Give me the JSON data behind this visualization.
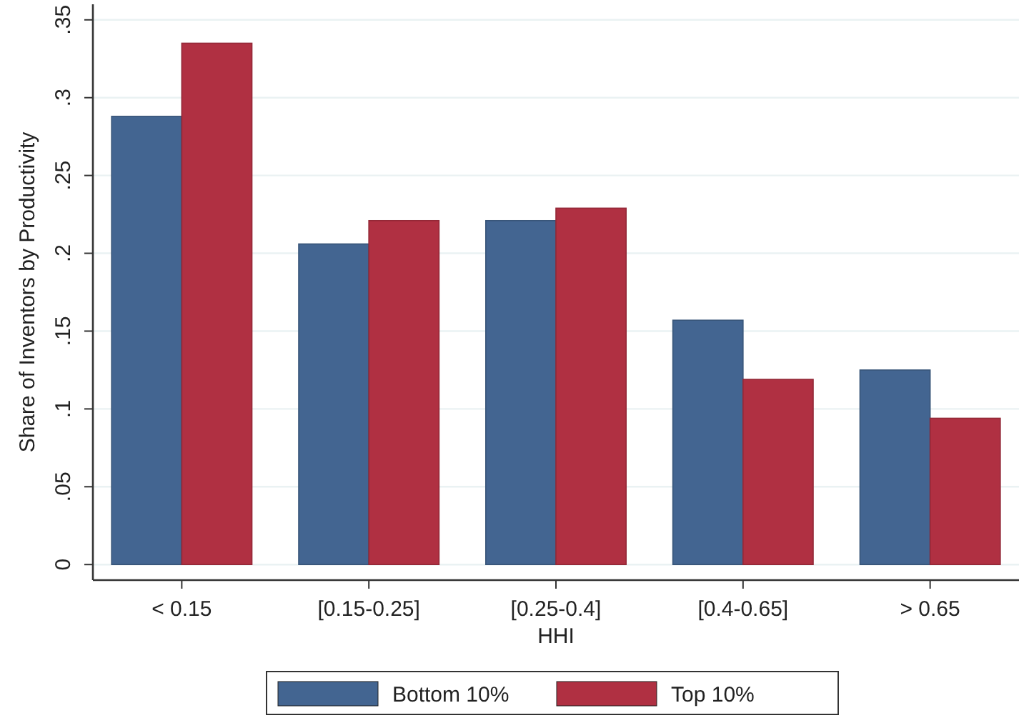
{
  "chart_data": {
    "type": "bar",
    "xlabel": "HHI",
    "ylabel": "Share of Inventors by Productivity",
    "categories": [
      "< 0.15",
      "[0.15-0.25]",
      "[0.25-0.4]",
      "[0.4-0.65]",
      "> 0.65"
    ],
    "series": [
      {
        "name": "Bottom 10%",
        "color": "#436591",
        "values": [
          0.288,
          0.206,
          0.221,
          0.157,
          0.125
        ]
      },
      {
        "name": "Top 10%",
        "color": "#b03042",
        "values": [
          0.335,
          0.221,
          0.229,
          0.119,
          0.094
        ]
      }
    ],
    "ylim": [
      -0.01,
      0.36
    ],
    "yticks": [
      {
        "value": 0,
        "label": "0"
      },
      {
        "value": 0.05,
        "label": ".05"
      },
      {
        "value": 0.1,
        "label": ".1"
      },
      {
        "value": 0.15,
        "label": ".15"
      },
      {
        "value": 0.2,
        "label": ".2"
      },
      {
        "value": 0.25,
        "label": ".25"
      },
      {
        "value": 0.3,
        "label": ".3"
      },
      {
        "value": 0.35,
        "label": ".35"
      }
    ],
    "grid": "y",
    "legend": "bottom"
  }
}
